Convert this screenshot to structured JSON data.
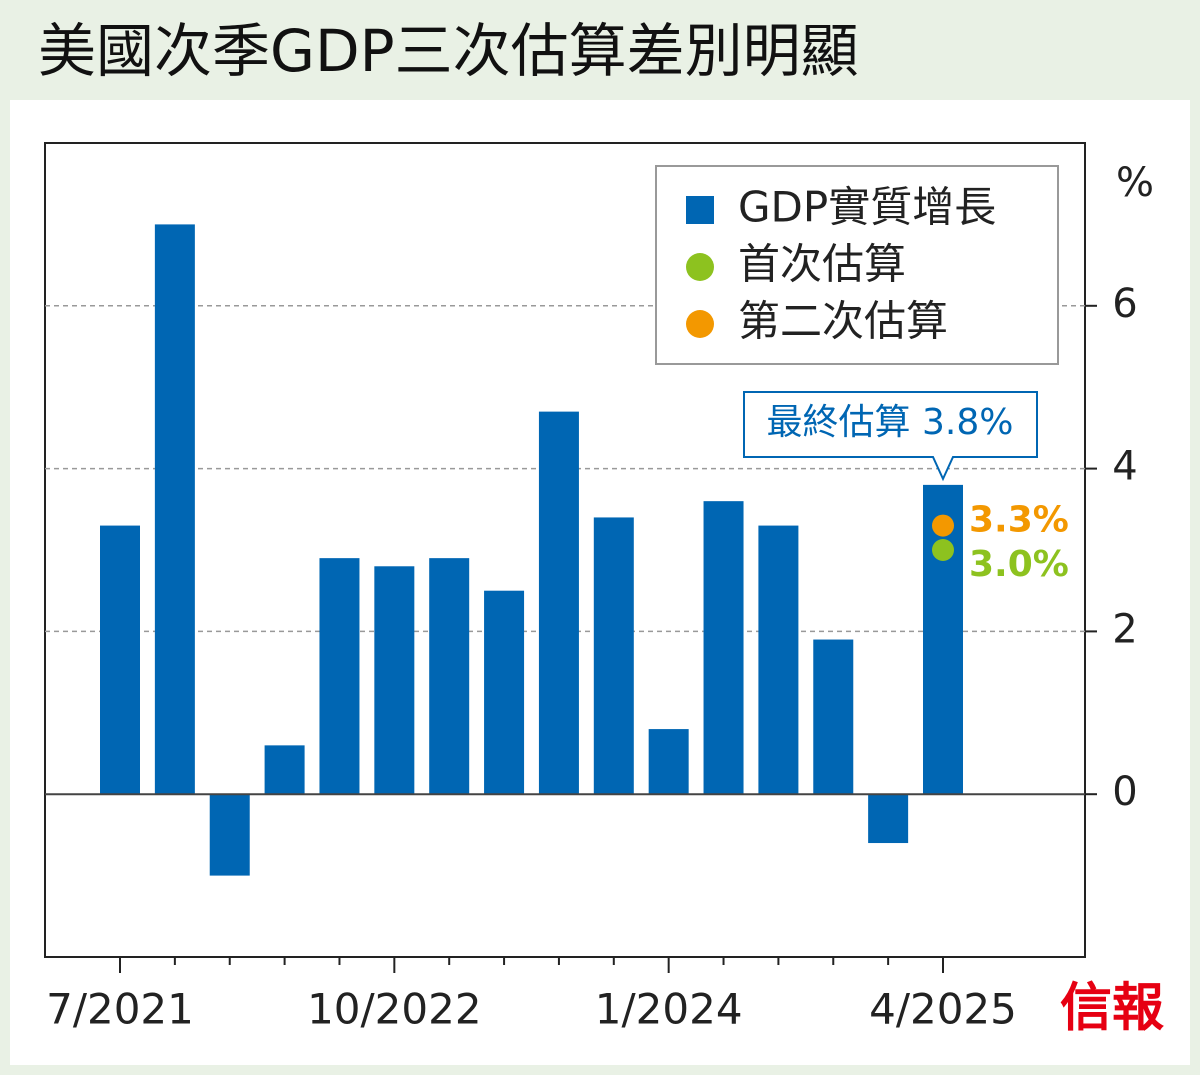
{
  "chart_data": {
    "type": "bar",
    "title": "美國次季GDP三次估算差別明顯",
    "categories": [
      "7/2021",
      null,
      null,
      null,
      null,
      "10/2022",
      null,
      null,
      null,
      null,
      "1/2024",
      null,
      null,
      null,
      null,
      "4/2025"
    ],
    "series": [
      {
        "name": "GDP實質增長",
        "color": "#0066b3",
        "values": [
          3.3,
          7.0,
          -1.0,
          0.6,
          2.9,
          2.8,
          2.9,
          2.5,
          4.7,
          3.4,
          0.8,
          3.6,
          3.3,
          1.9,
          -0.6,
          3.8
        ]
      },
      {
        "name": "首次估算",
        "type": "scatter",
        "color": "#8dc21f",
        "values": [
          null,
          null,
          null,
          null,
          null,
          null,
          null,
          null,
          null,
          null,
          null,
          null,
          null,
          null,
          null,
          3.0
        ],
        "value_labels": [
          null,
          null,
          null,
          null,
          null,
          null,
          null,
          null,
          null,
          null,
          null,
          null,
          null,
          null,
          null,
          "3.0%"
        ]
      },
      {
        "name": "第二次估算",
        "type": "scatter",
        "color": "#f39800",
        "values": [
          null,
          null,
          null,
          null,
          null,
          null,
          null,
          null,
          null,
          null,
          null,
          null,
          null,
          null,
          null,
          3.3
        ],
        "value_labels": [
          null,
          null,
          null,
          null,
          null,
          null,
          null,
          null,
          null,
          null,
          null,
          null,
          null,
          null,
          null,
          "3.3%"
        ]
      }
    ],
    "annotation": "最終估算 3.8%",
    "ylabel": "%",
    "ylim": [
      -2,
      8
    ],
    "yticks": [
      0,
      2,
      4,
      6
    ],
    "grid": true,
    "legend": "upper right",
    "source": "信報"
  }
}
